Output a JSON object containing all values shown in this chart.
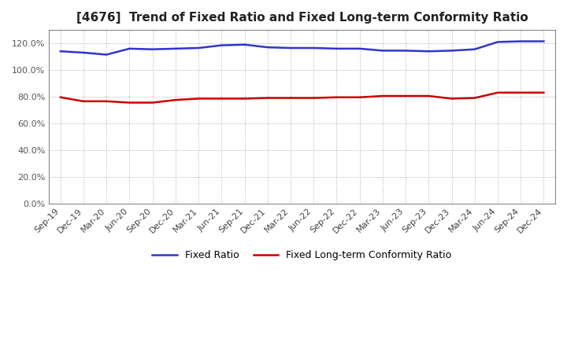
{
  "title": "[4676]  Trend of Fixed Ratio and Fixed Long-term Conformity Ratio",
  "x_labels": [
    "Sep-19",
    "Dec-19",
    "Mar-20",
    "Jun-20",
    "Sep-20",
    "Dec-20",
    "Mar-21",
    "Jun-21",
    "Sep-21",
    "Dec-21",
    "Mar-22",
    "Jun-22",
    "Sep-22",
    "Dec-22",
    "Mar-23",
    "Jun-23",
    "Sep-23",
    "Dec-23",
    "Mar-24",
    "Jun-24",
    "Sep-24",
    "Dec-24"
  ],
  "fixed_ratio": [
    114.0,
    113.0,
    111.5,
    116.0,
    115.5,
    116.0,
    116.5,
    118.5,
    119.0,
    117.0,
    116.5,
    116.5,
    116.0,
    116.0,
    114.5,
    114.5,
    114.0,
    114.5,
    115.5,
    121.0,
    121.5,
    121.5
  ],
  "fixed_lt_ratio": [
    79.5,
    76.5,
    76.5,
    75.5,
    75.5,
    77.5,
    78.5,
    78.5,
    78.5,
    79.0,
    79.0,
    79.0,
    79.5,
    79.5,
    80.5,
    80.5,
    80.5,
    78.5,
    79.0,
    83.0,
    83.0,
    83.0
  ],
  "fixed_ratio_color": "#3333cc",
  "fixed_lt_ratio_color": "#cc0000",
  "ylim": [
    0,
    130
  ],
  "yticks": [
    0,
    20,
    40,
    60,
    80,
    100,
    120
  ],
  "background_color": "#ffffff",
  "plot_bg_color": "#ffffff",
  "grid_color": "#aaaaaa",
  "legend_fixed_ratio": "Fixed Ratio",
  "legend_fixed_lt_ratio": "Fixed Long-term Conformity Ratio"
}
